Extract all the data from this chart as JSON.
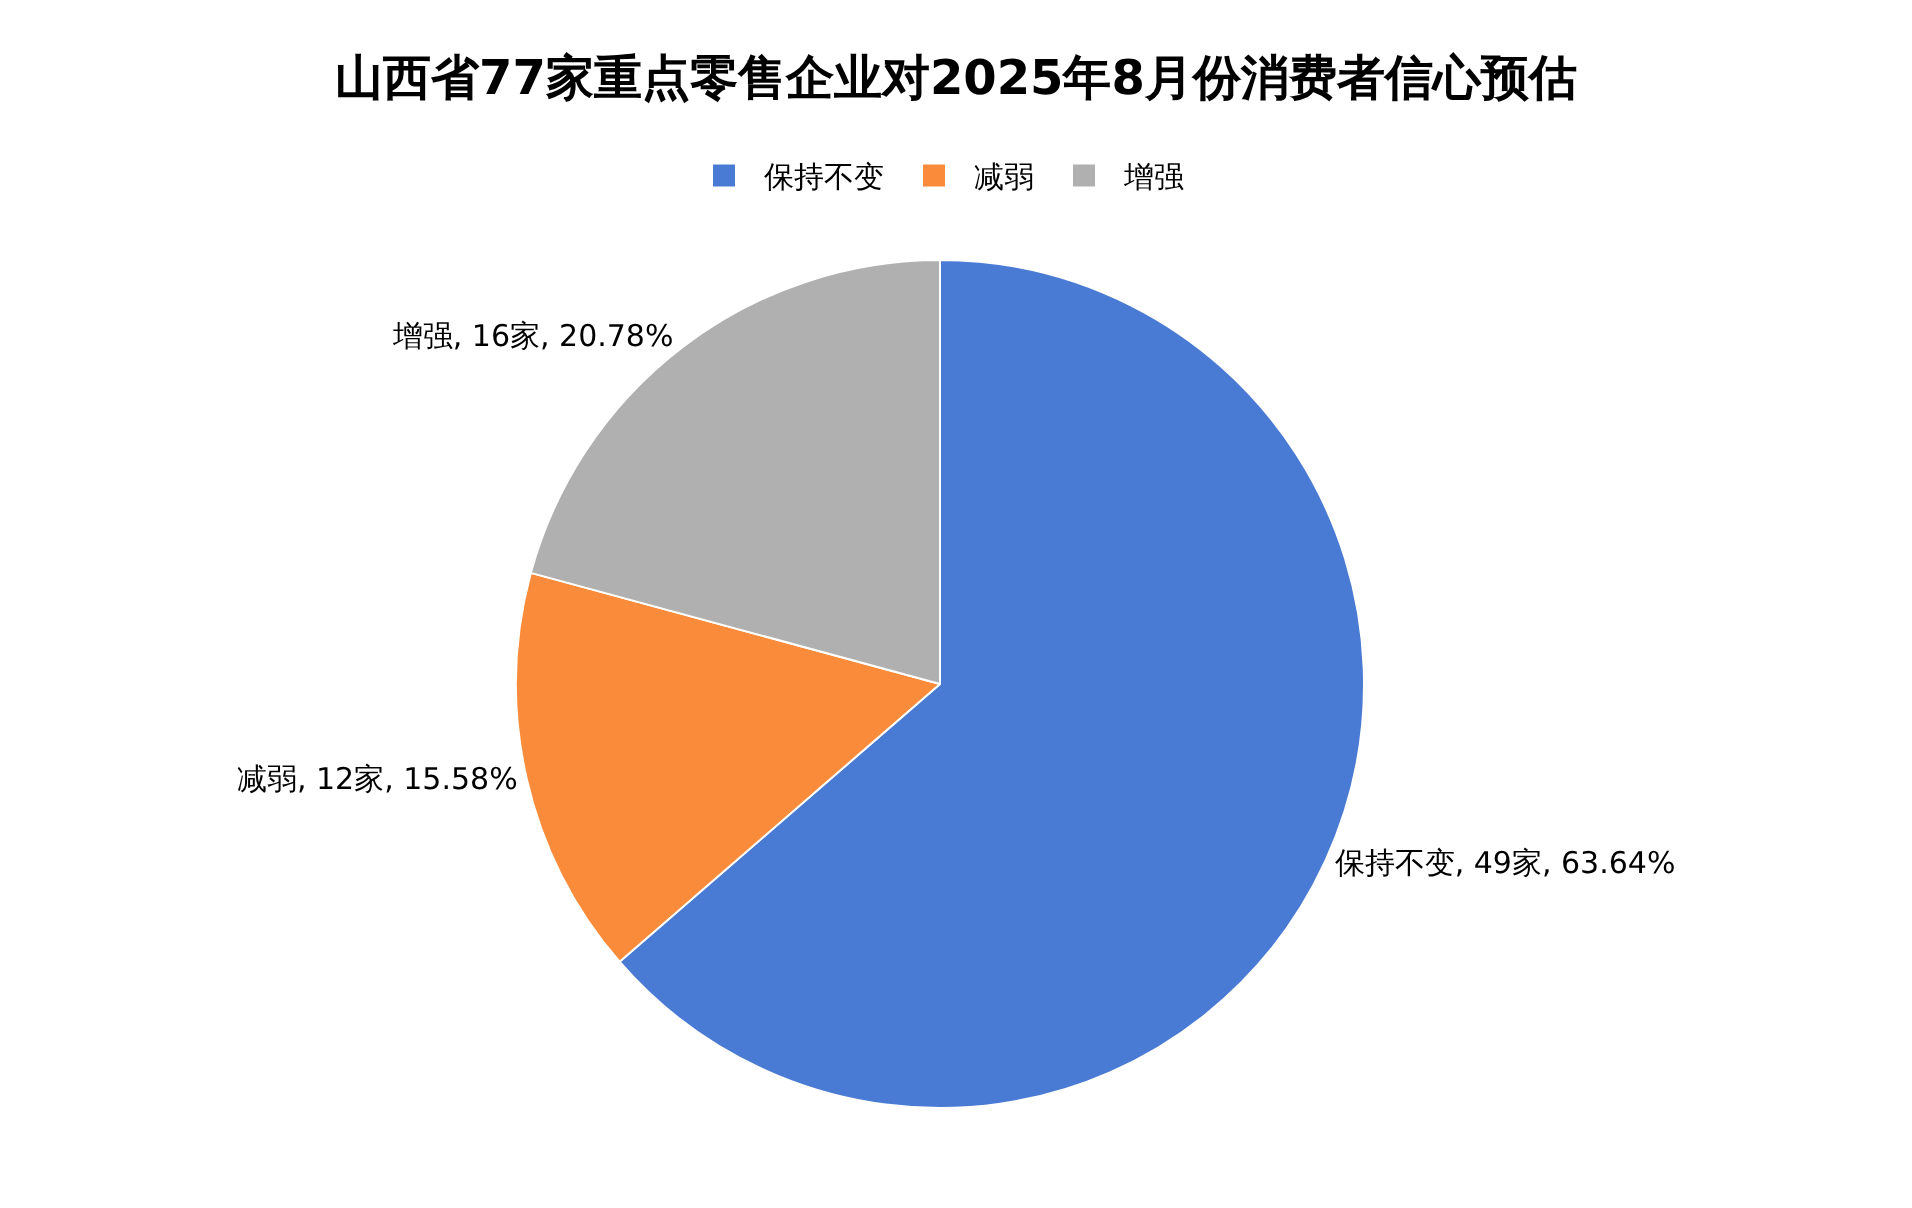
{
  "chart_data": {
    "type": "pie",
    "title": "山西省77家重点零售企业对2025年8月份消费者信心预估",
    "categories": [
      "保持不变",
      "减弱",
      "增强"
    ],
    "values": [
      49,
      12,
      16
    ],
    "value_labels": [
      "保持不变, 49家, 63.64%",
      "减弱, 12家, 15.58%",
      "增强, 16家, 20.78%"
    ],
    "colors": [
      "#4a7bd4",
      "#f98b3a",
      "#b0b0b0"
    ],
    "legend": "top"
  }
}
